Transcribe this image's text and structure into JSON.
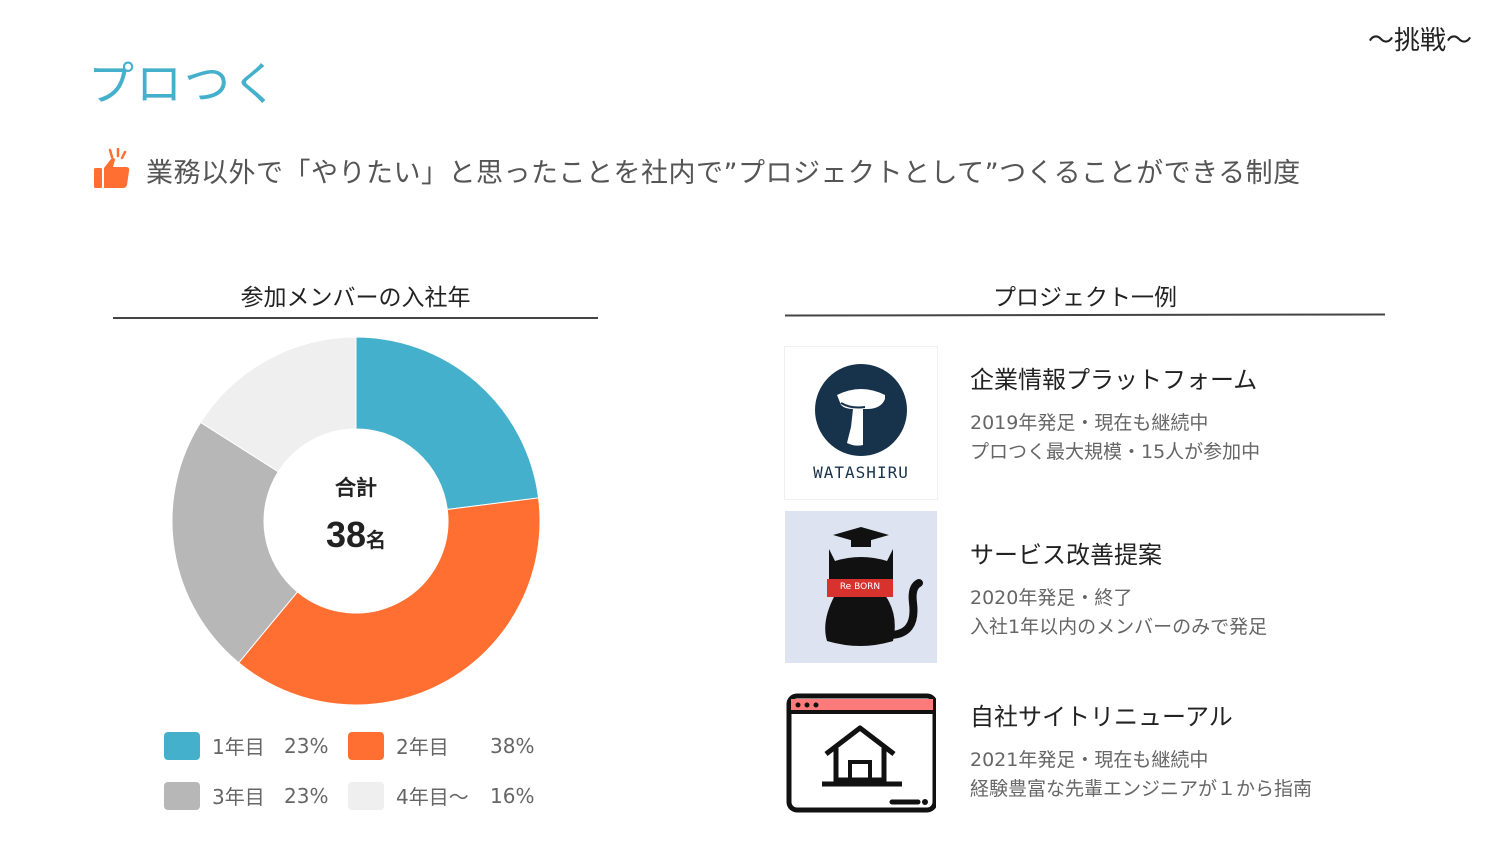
{
  "header": {
    "corner_tag": "〜挑戦〜",
    "title": "プロつく",
    "subtitle": "業務以外で「やりたい」と思ったことを社内で”プロジェクトとして”つくることができる制度"
  },
  "chart_section": {
    "heading": "参加メンバーの入社年",
    "center_label": "合計",
    "center_value": "38",
    "center_unit": "名"
  },
  "chart_data": {
    "type": "pie",
    "title": "参加メンバーの入社年",
    "categories": [
      "1年目",
      "2年目",
      "3年目",
      "4年目〜"
    ],
    "values": [
      23,
      38,
      23,
      16
    ],
    "value_labels": [
      "23%",
      "38%",
      "23%",
      "16%"
    ],
    "colors": [
      "#45b0cc",
      "#ff6f31",
      "#b7b7b7",
      "#efefef"
    ],
    "donut": true,
    "legend_position": "bottom"
  },
  "projects_section": {
    "heading": "プロジェクト一例",
    "items": [
      {
        "title": "企業情報プラットフォーム",
        "line1": "2019年発足・現在も継続中",
        "line2": "プロつく最大規模・15人が参加中",
        "logo_text": "WATASHIRU"
      },
      {
        "title": "サービス改善提案",
        "line1": "2020年発足・終了",
        "line2": "入社1年以内のメンバーのみで発足",
        "logo_text": "Re BORN"
      },
      {
        "title": "自社サイトリニューアル",
        "line1": "2021年発足・現在も継続中",
        "line2": "経験豊富な先輩エンジニアが１から指南",
        "logo_text": ""
      }
    ]
  },
  "icons": {
    "subtitle_icon": "thumbs-up-icon",
    "project_icon_1": "watashiru-logo-icon",
    "project_icon_2": "cat-icon",
    "project_icon_3": "website-home-icon"
  }
}
